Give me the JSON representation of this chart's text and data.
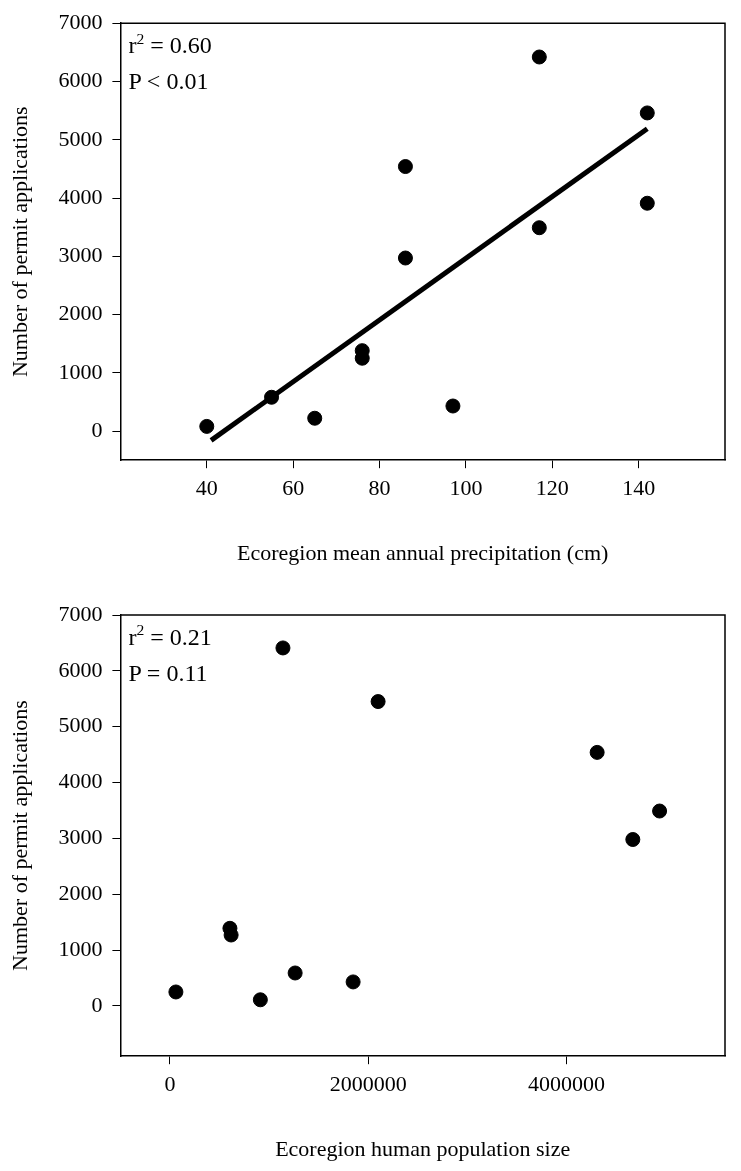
{
  "chart_data": [
    {
      "type": "scatter",
      "xlabel": "Ecoregion mean annual precipitation (cm)",
      "ylabel": "Number of permit applications",
      "xlim": [
        20,
        160
      ],
      "xticks": [
        40,
        60,
        80,
        100,
        120,
        140
      ],
      "ylim": [
        -500,
        7000
      ],
      "yticks": [
        0,
        1000,
        2000,
        3000,
        4000,
        5000,
        6000,
        7000
      ],
      "grid": false,
      "legend": false,
      "marker": "circle",
      "annotations": [
        "r$^{2}$ = 0.60",
        "P < 0.01"
      ],
      "series": [
        {
          "type": "scatter",
          "color": "#000000",
          "x": [
            40,
            55,
            65,
            76,
            76,
            86,
            86,
            97,
            117,
            117,
            142,
            142
          ],
          "values": [
            80,
            580,
            220,
            1380,
            1250,
            4540,
            2970,
            430,
            6420,
            3490,
            5460,
            3910
          ]
        },
        {
          "type": "line",
          "color": "#000000",
          "marker": "none",
          "line_style": "solid",
          "x": [
            41,
            142
          ],
          "values": [
            -160,
            5190
          ]
        }
      ]
    },
    {
      "type": "scatter",
      "xlabel": "Ecoregion human population size",
      "ylabel": "Number of permit applications",
      "xlim": [
        -500000,
        5600000
      ],
      "xticks": [
        0,
        2000000,
        4000000
      ],
      "ylim": [
        -900,
        7000
      ],
      "yticks": [
        0,
        1000,
        2000,
        3000,
        4000,
        5000,
        6000,
        7000
      ],
      "grid": false,
      "legend": false,
      "marker": "circle",
      "annotations": [
        "r$^{2}$ = 0.21",
        "P = 0.11"
      ],
      "series": [
        {
          "type": "scatter",
          "color": "#000000",
          "x": [
            1140000,
            2100000,
            4310000,
            4940000,
            4670000,
            605000,
            617000,
            60000,
            912000,
            1263000,
            1848000
          ],
          "values": [
            6410,
            5450,
            4540,
            3490,
            2980,
            1390,
            1270,
            250,
            110,
            590,
            430
          ]
        }
      ]
    }
  ]
}
